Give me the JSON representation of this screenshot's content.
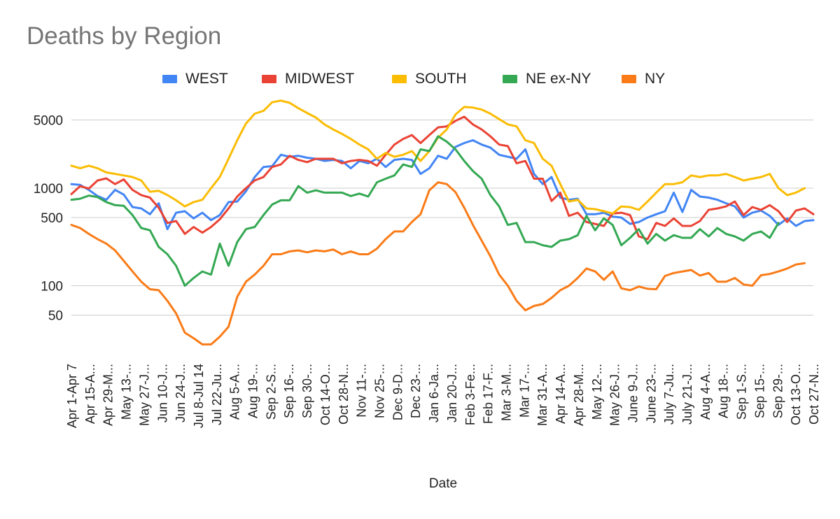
{
  "chart_data": {
    "type": "line",
    "title": "Deaths by Region",
    "xlabel": "Date",
    "ylabel": "",
    "yscale": "log",
    "ylim": [
      21,
      15000
    ],
    "y_ticks": [
      50,
      100,
      500,
      1000,
      5000
    ],
    "legend_position": "top",
    "x_tick_labels": [
      "Apr 1-Apr 7",
      "Apr 15-A...",
      "Apr 29-M...",
      "May 13-...",
      "May 27-J...",
      "Jun 10-J...",
      "Jun 24-J...",
      "Jul 8-Jul 14",
      "Jul 22-Ju...",
      "Aug 5-A...",
      "Aug 19-...",
      "Sep 2-S...",
      "Sep 16-...",
      "Sep 30-...",
      "Oct 14-O...",
      "Oct 28-N...",
      "Nov 11-...",
      "Nov 25-...",
      "Dec 9-D...",
      "Dec 23-...",
      "Jan 6-Ja...",
      "Jan 20-J...",
      "Feb 3-Fe...",
      "Feb 17-F...",
      "Mar 3-M...",
      "Mar 17-...",
      "Mar 31-A...",
      "Apr 14-A...",
      "Apr 28-M...",
      "May 12-...",
      "May 26-J...",
      "June 9-J...",
      "June 23-...",
      "July 7-Ju...",
      "July 21-J...",
      "Aug 4-A...",
      "Aug 18-...",
      "Sep 1-S...",
      "Sep 15-...",
      "Sep 29-...",
      "Oct 13-O...",
      "Oct 27-N..."
    ],
    "series": [
      {
        "name": "WEST",
        "color": "#4285f4",
        "values": [
          1100,
          1080,
          960,
          830,
          760,
          960,
          860,
          640,
          620,
          540,
          700,
          380,
          560,
          580,
          490,
          560,
          470,
          530,
          720,
          730,
          930,
          1300,
          1650,
          1680,
          2200,
          2100,
          2150,
          2050,
          2000,
          1900,
          1950,
          1900,
          1600,
          1900,
          1800,
          2000,
          1650,
          1950,
          2000,
          1950,
          1400,
          1600,
          2150,
          2000,
          2650,
          2900,
          3100,
          2800,
          2600,
          2200,
          2100,
          2000,
          2500,
          1400,
          1100,
          1300,
          800,
          760,
          780,
          540,
          540,
          560,
          510,
          500,
          430,
          450,
          500,
          540,
          580,
          900,
          570,
          960,
          820,
          800,
          760,
          700,
          650,
          500,
          560,
          590,
          520,
          420,
          490,
          410,
          460,
          470
        ]
      },
      {
        "name": "MIDWEST",
        "color": "#ea4335",
        "values": [
          870,
          1050,
          990,
          1200,
          1260,
          1100,
          1230,
          960,
          850,
          800,
          630,
          440,
          460,
          340,
          400,
          350,
          400,
          480,
          620,
          820,
          1000,
          1200,
          1300,
          1650,
          1750,
          2150,
          1950,
          1850,
          2000,
          2000,
          2000,
          1800,
          1900,
          1950,
          1900,
          1700,
          2200,
          2800,
          3200,
          3500,
          2900,
          3500,
          4200,
          4300,
          4900,
          5400,
          4500,
          4000,
          3400,
          2800,
          2700,
          1800,
          1900,
          1250,
          1250,
          740,
          900,
          520,
          560,
          450,
          430,
          410,
          550,
          560,
          530,
          320,
          300,
          440,
          410,
          490,
          410,
          410,
          460,
          600,
          620,
          650,
          730,
          530,
          640,
          600,
          670,
          580,
          450,
          590,
          620,
          540
        ]
      },
      {
        "name": "SOUTH",
        "color": "#fbbc04",
        "values": [
          1700,
          1600,
          1700,
          1600,
          1450,
          1400,
          1350,
          1300,
          1200,
          920,
          940,
          850,
          750,
          650,
          720,
          760,
          1000,
          1300,
          2000,
          3100,
          4600,
          5800,
          6200,
          7600,
          7900,
          7500,
          6600,
          5900,
          5300,
          4500,
          4000,
          3600,
          3200,
          2800,
          2500,
          2000,
          2300,
          2100,
          2200,
          2400,
          1900,
          2400,
          3300,
          4000,
          5700,
          6800,
          6700,
          6400,
          5800,
          5100,
          4500,
          4300,
          3100,
          2900,
          2000,
          1700,
          1100,
          730,
          760,
          620,
          610,
          580,
          550,
          650,
          640,
          600,
          730,
          900,
          1100,
          1100,
          1150,
          1350,
          1300,
          1350,
          1350,
          1400,
          1300,
          1200,
          1250,
          1300,
          1400,
          1000,
          850,
          900,
          1000
        ]
      },
      {
        "name": "NE ex-NY",
        "color": "#34a853",
        "values": [
          760,
          780,
          840,
          810,
          720,
          670,
          660,
          530,
          390,
          370,
          250,
          210,
          160,
          100,
          120,
          140,
          130,
          270,
          160,
          280,
          380,
          400,
          530,
          680,
          750,
          750,
          1050,
          900,
          950,
          900,
          900,
          900,
          830,
          880,
          820,
          1150,
          1250,
          1350,
          1750,
          1650,
          2500,
          2400,
          3400,
          3000,
          2500,
          1900,
          1500,
          1250,
          850,
          650,
          420,
          440,
          280,
          280,
          260,
          250,
          290,
          300,
          330,
          520,
          370,
          490,
          420,
          260,
          310,
          380,
          270,
          340,
          290,
          330,
          310,
          310,
          380,
          320,
          390,
          340,
          320,
          290,
          340,
          360,
          310,
          440
        ]
      },
      {
        "name": "NY",
        "color": "#fa7b17",
        "values": [
          420,
          390,
          340,
          300,
          270,
          230,
          180,
          140,
          110,
          92,
          90,
          70,
          52,
          33,
          29,
          25,
          25,
          30,
          38,
          77,
          110,
          130,
          160,
          210,
          210,
          225,
          230,
          220,
          230,
          225,
          235,
          210,
          225,
          210,
          210,
          240,
          300,
          360,
          360,
          450,
          540,
          950,
          1150,
          1100,
          910,
          630,
          420,
          290,
          200,
          130,
          100,
          70,
          56,
          62,
          65,
          75,
          90,
          100,
          120,
          150,
          140,
          115,
          140,
          94,
          90,
          98,
          93,
          92,
          126,
          135,
          140,
          145,
          127,
          135,
          110,
          110,
          120,
          103,
          100,
          128,
          132,
          140,
          150,
          165,
          170
        ]
      }
    ]
  }
}
